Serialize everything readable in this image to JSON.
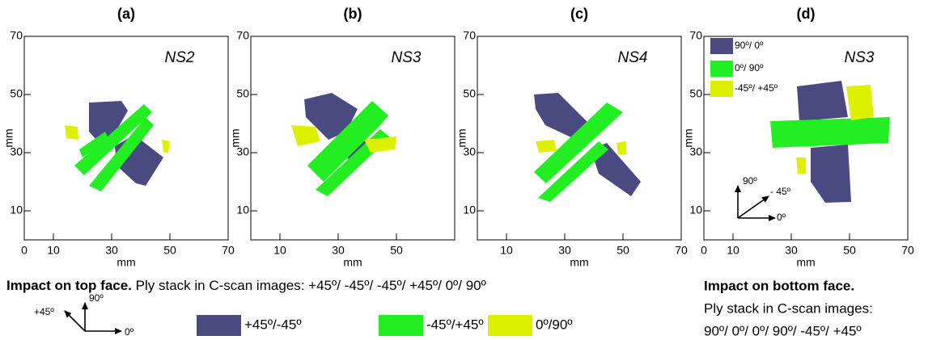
{
  "panels": [
    {
      "label": "(a)",
      "sample": "NS2",
      "xticks": [
        0,
        10,
        30,
        50,
        70
      ],
      "yticks": [
        70,
        50,
        30,
        10
      ],
      "xlabel": "mm",
      "ylabel": "mm"
    },
    {
      "label": "(b)",
      "sample": "NS3",
      "xticks": [
        10,
        30,
        50
      ],
      "yticks": [
        70,
        50,
        30,
        10
      ],
      "xlabel": "mm",
      "ylabel": "mm"
    },
    {
      "label": "(c)",
      "sample": "NS4",
      "xticks": [
        10,
        30,
        50,
        70
      ],
      "yticks": [
        70,
        50,
        30,
        10
      ],
      "xlabel": "mm",
      "ylabel": "mm"
    },
    {
      "label": "(d)",
      "sample": "NS3",
      "xticks": [
        0,
        10,
        30,
        50,
        70
      ],
      "yticks": [
        70,
        50,
        30,
        10
      ],
      "xlabel": "mm",
      "ylabel": "mm"
    }
  ],
  "legend_d": [
    "90º/ 0º",
    "0º/ 90º",
    "-45º/ +45º"
  ],
  "axes_d": [
    "90º",
    "- 45º",
    "0º"
  ],
  "caption_top": {
    "bold": "Impact on top face.",
    "text": "Ply stack in C-scan images: +45º/ -45º/ -45º/ +45º/ 0º/ 90º"
  },
  "axes_top": [
    "90º",
    "+45º",
    "0º"
  ],
  "legend": [
    "+45º/-45º",
    "-45º/+45º",
    "0º/90º"
  ],
  "caption_bottom": {
    "bold": "Impact on bottom face.",
    "lines": [
      "Ply stack in C-scan images:",
      "90º/ 0º/ 0º/ 90º/ -45º/ +45º"
    ]
  }
}
